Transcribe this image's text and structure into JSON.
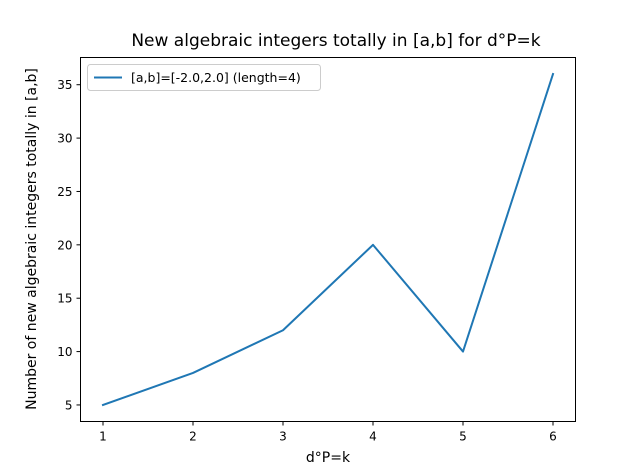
{
  "chart_data": {
    "type": "line",
    "title": "New algebraic integers totally in [a,b] for d°P=k",
    "xlabel": "d°P=k",
    "ylabel": "Number of new algebraic integers totally in [a,b]",
    "x": [
      1,
      2,
      3,
      4,
      5,
      6
    ],
    "xticks": [
      "1",
      "2",
      "3",
      "4",
      "5",
      "6"
    ],
    "yticks": [
      "5",
      "10",
      "15",
      "20",
      "25",
      "30",
      "35"
    ],
    "xlim": [
      0.75,
      6.25
    ],
    "ylim": [
      3.45,
      37.55
    ],
    "grid": false,
    "legend_position": "top-left",
    "series": [
      {
        "name": "[a,b]=[-2.0,2.0] (length=4)",
        "values": [
          5,
          8,
          12,
          20,
          10,
          36
        ],
        "color": "#1f77b4"
      }
    ]
  }
}
